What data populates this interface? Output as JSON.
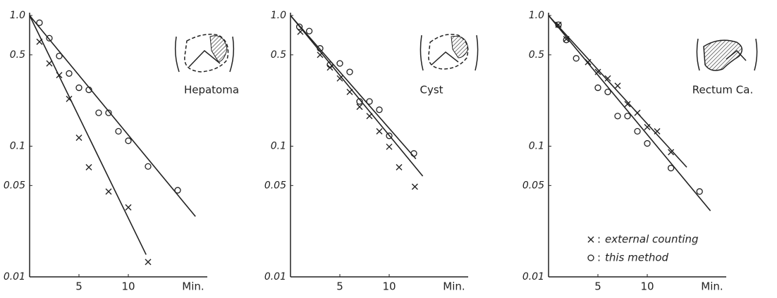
{
  "chart_data": [
    {
      "type": "scatter",
      "title": "Hepatoma",
      "x_label": "Min.",
      "log_y": true,
      "legend": false,
      "xlim": [
        0,
        18
      ],
      "ylim": [
        0.01,
        1
      ],
      "xticks": [
        5,
        10
      ],
      "yticks": [
        {
          "value": 1,
          "label": "1.0"
        },
        0.5,
        0.1,
        0.05,
        0.01
      ],
      "series": [
        {
          "name": "external counting",
          "marker": "x",
          "color": "#222",
          "x": [
            1,
            2,
            3,
            4,
            5,
            6,
            8,
            10,
            12
          ],
          "values": [
            0.63,
            0.43,
            0.35,
            0.23,
            0.116,
            0.069,
            0.045,
            0.034,
            0.013
          ],
          "fit": {
            "x": [
              0,
              11.8
            ],
            "values": [
              1,
              0.0148
            ]
          }
        },
        {
          "name": "this method",
          "marker": "o",
          "color": "#222",
          "x": [
            1,
            2,
            3,
            4,
            5,
            6,
            7,
            8,
            9,
            10,
            12,
            15
          ],
          "values": [
            0.88,
            0.67,
            0.49,
            0.36,
            0.28,
            0.27,
            0.18,
            0.18,
            0.13,
            0.11,
            0.07,
            0.046
          ],
          "fit": {
            "x": [
              0,
              16.8
            ],
            "values": [
              1,
              0.029
            ]
          }
        }
      ]
    },
    {
      "type": "scatter",
      "title": "Cyst",
      "x_label": "Min.",
      "log_y": true,
      "legend": false,
      "xlim": [
        0,
        18
      ],
      "ylim": [
        0.01,
        1
      ],
      "xticks": [
        5,
        10
      ],
      "yticks": [
        {
          "value": 1,
          "label": "1.0"
        },
        0.5,
        0.1,
        0.05,
        0.01
      ],
      "series": [
        {
          "name": "external counting",
          "marker": "x",
          "color": "#222",
          "x": [
            1,
            3,
            4,
            5,
            6,
            7,
            8,
            9,
            10,
            11,
            12.6
          ],
          "values": [
            0.75,
            0.5,
            0.4,
            0.33,
            0.26,
            0.2,
            0.17,
            0.13,
            0.099,
            0.069,
            0.049
          ],
          "fit": {
            "x": [
              0,
              13.4
            ],
            "values": [
              1,
              0.059
            ]
          }
        },
        {
          "name": "this method",
          "marker": "o",
          "color": "#222",
          "x": [
            0.9,
            1.9,
            3,
            4,
            5,
            6,
            7,
            8,
            9,
            10,
            12.5
          ],
          "values": [
            0.82,
            0.76,
            0.56,
            0.42,
            0.43,
            0.37,
            0.22,
            0.22,
            0.19,
            0.12,
            0.088
          ],
          "fit": {
            "x": [
              0,
              12.7
            ],
            "values": [
              1,
              0.08
            ]
          }
        }
      ]
    },
    {
      "type": "scatter",
      "title": "Rectum Ca.",
      "x_label": "Min.",
      "log_y": true,
      "legend": true,
      "legend_separator": ":",
      "xlim": [
        0,
        18
      ],
      "ylim": [
        0.01,
        1
      ],
      "xticks": [
        5,
        10
      ],
      "yticks": [
        {
          "value": 1,
          "label": "1.0"
        },
        0.5,
        0.1,
        0.05,
        0.01
      ],
      "series": [
        {
          "name": "external counting",
          "marker": "x",
          "color": "#222",
          "x": [
            1,
            1.8,
            4,
            5,
            6,
            7,
            8,
            9,
            10,
            11,
            12.4
          ],
          "values": [
            0.85,
            0.66,
            0.44,
            0.37,
            0.33,
            0.29,
            0.21,
            0.18,
            0.14,
            0.13,
            0.09
          ],
          "fit": {
            "x": [
              0,
              14
            ],
            "values": [
              1,
              0.069
            ]
          }
        },
        {
          "name": "this method",
          "marker": "o",
          "color": "#222",
          "x": [
            1,
            1.8,
            2.8,
            5,
            6,
            7,
            8,
            9,
            10,
            12.4,
            15.3
          ],
          "values": [
            0.85,
            0.65,
            0.47,
            0.28,
            0.26,
            0.17,
            0.17,
            0.13,
            0.105,
            0.068,
            0.045
          ],
          "fit": {
            "x": [
              0,
              16.4
            ],
            "values": [
              1,
              0.032
            ]
          }
        }
      ]
    }
  ]
}
